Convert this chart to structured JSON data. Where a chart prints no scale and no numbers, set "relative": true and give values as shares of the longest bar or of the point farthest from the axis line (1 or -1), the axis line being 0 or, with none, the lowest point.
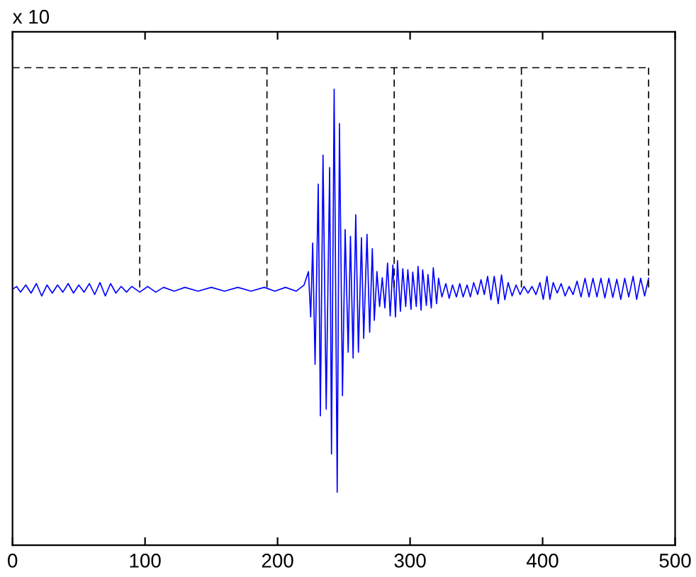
{
  "chart_data": {
    "type": "line",
    "relative": true,
    "annotations": [
      "x 10"
    ],
    "xlim": [
      0,
      500
    ],
    "xticks": [
      0,
      100,
      200,
      300,
      400,
      500
    ],
    "series": [
      {
        "color": "#0000ff",
        "line_style": "solid",
        "x": [
          0,
          3,
          6,
          10,
          14,
          18,
          22,
          26,
          30,
          34,
          38,
          42,
          46,
          50,
          54,
          58,
          62,
          66,
          70,
          74,
          78,
          82,
          86,
          90,
          96,
          102,
          108,
          114,
          122,
          130,
          140,
          150,
          160,
          170,
          180,
          190,
          198,
          206,
          214,
          220,
          223.3,
          225,
          226.5,
          228.3,
          230.7,
          232.3,
          234.3,
          236.7,
          239.3,
          240.7,
          242.7,
          245,
          246.7,
          249,
          251,
          253.3,
          255,
          257,
          259,
          261,
          263.3,
          265,
          267.5,
          269.5,
          271.5,
          273,
          275,
          277,
          279,
          281,
          283,
          285,
          287,
          289,
          290.5,
          292.7,
          294.5,
          296.7,
          298.3,
          300.7,
          302,
          304.7,
          306,
          308.3,
          309.5,
          312.3,
          313.5,
          316,
          317.5,
          320,
          321.5,
          324,
          327,
          329.5,
          332,
          335,
          337.5,
          340,
          343,
          345.5,
          348,
          351,
          353.5,
          356,
          358.5,
          361,
          363.5,
          366.5,
          369,
          371.5,
          374,
          377,
          380,
          383,
          386,
          389,
          392,
          395,
          398,
          400.5,
          403.3,
          405.5,
          408,
          411,
          414,
          417,
          420,
          423,
          426,
          429,
          432,
          435,
          438,
          441,
          444,
          447,
          450,
          453,
          456,
          459,
          462,
          465,
          468.3,
          471,
          474,
          477,
          480
        ],
        "values": [
          0.536,
          0.542,
          0.53,
          0.545,
          0.528,
          0.548,
          0.522,
          0.545,
          0.528,
          0.545,
          0.53,
          0.548,
          0.528,
          0.545,
          0.53,
          0.548,
          0.525,
          0.55,
          0.522,
          0.548,
          0.528,
          0.542,
          0.53,
          0.542,
          0.53,
          0.542,
          0.53,
          0.54,
          0.532,
          0.54,
          0.532,
          0.54,
          0.532,
          0.54,
          0.532,
          0.54,
          0.532,
          0.54,
          0.532,
          0.545,
          0.573,
          0.478,
          0.633,
          0.379,
          0.756,
          0.271,
          0.817,
          0.285,
          0.791,
          0.191,
          0.955,
          0.111,
          0.883,
          0.313,
          0.661,
          0.404,
          0.647,
          0.392,
          0.692,
          0.404,
          0.644,
          0.433,
          0.651,
          0.446,
          0.621,
          0.471,
          0.573,
          0.5,
          0.56,
          0.497,
          0.591,
          0.48,
          0.587,
          0.478,
          0.596,
          0.49,
          0.579,
          0.5,
          0.577,
          0.494,
          0.572,
          0.5,
          0.584,
          0.492,
          0.577,
          0.502,
          0.567,
          0.497,
          0.581,
          0.506,
          0.559,
          0.52,
          0.548,
          0.517,
          0.545,
          0.52,
          0.548,
          0.52,
          0.545,
          0.52,
          0.55,
          0.525,
          0.556,
          0.525,
          0.563,
          0.514,
          0.563,
          0.506,
          0.566,
          0.514,
          0.55,
          0.522,
          0.545,
          0.525,
          0.542,
          0.528,
          0.542,
          0.525,
          0.55,
          0.515,
          0.563,
          0.515,
          0.55,
          0.528,
          0.548,
          0.522,
          0.542,
          0.525,
          0.553,
          0.52,
          0.559,
          0.52,
          0.559,
          0.52,
          0.559,
          0.518,
          0.559,
          0.519,
          0.557,
          0.515,
          0.559,
          0.52,
          0.563,
          0.515,
          0.559,
          0.522,
          0.559
        ]
      },
      {
        "color": "#000000",
        "line_style": "dashed",
        "x": [
          0,
          480
        ],
        "values": [
          1,
          1
        ]
      },
      {
        "color": "#000000",
        "line_style": "dashed",
        "x": [
          96,
          96
        ],
        "values": [
          1,
          0.536
        ]
      },
      {
        "color": "#000000",
        "line_style": "dashed",
        "x": [
          192,
          192
        ],
        "values": [
          1,
          0.536
        ]
      },
      {
        "color": "#000000",
        "line_style": "dashed",
        "x": [
          288,
          288
        ],
        "values": [
          1,
          0.536
        ]
      },
      {
        "color": "#000000",
        "line_style": "dashed",
        "x": [
          384,
          384
        ],
        "values": [
          1,
          0.536
        ]
      },
      {
        "color": "#000000",
        "line_style": "dashed",
        "x": [
          480,
          480
        ],
        "values": [
          1,
          0.536
        ]
      }
    ]
  }
}
